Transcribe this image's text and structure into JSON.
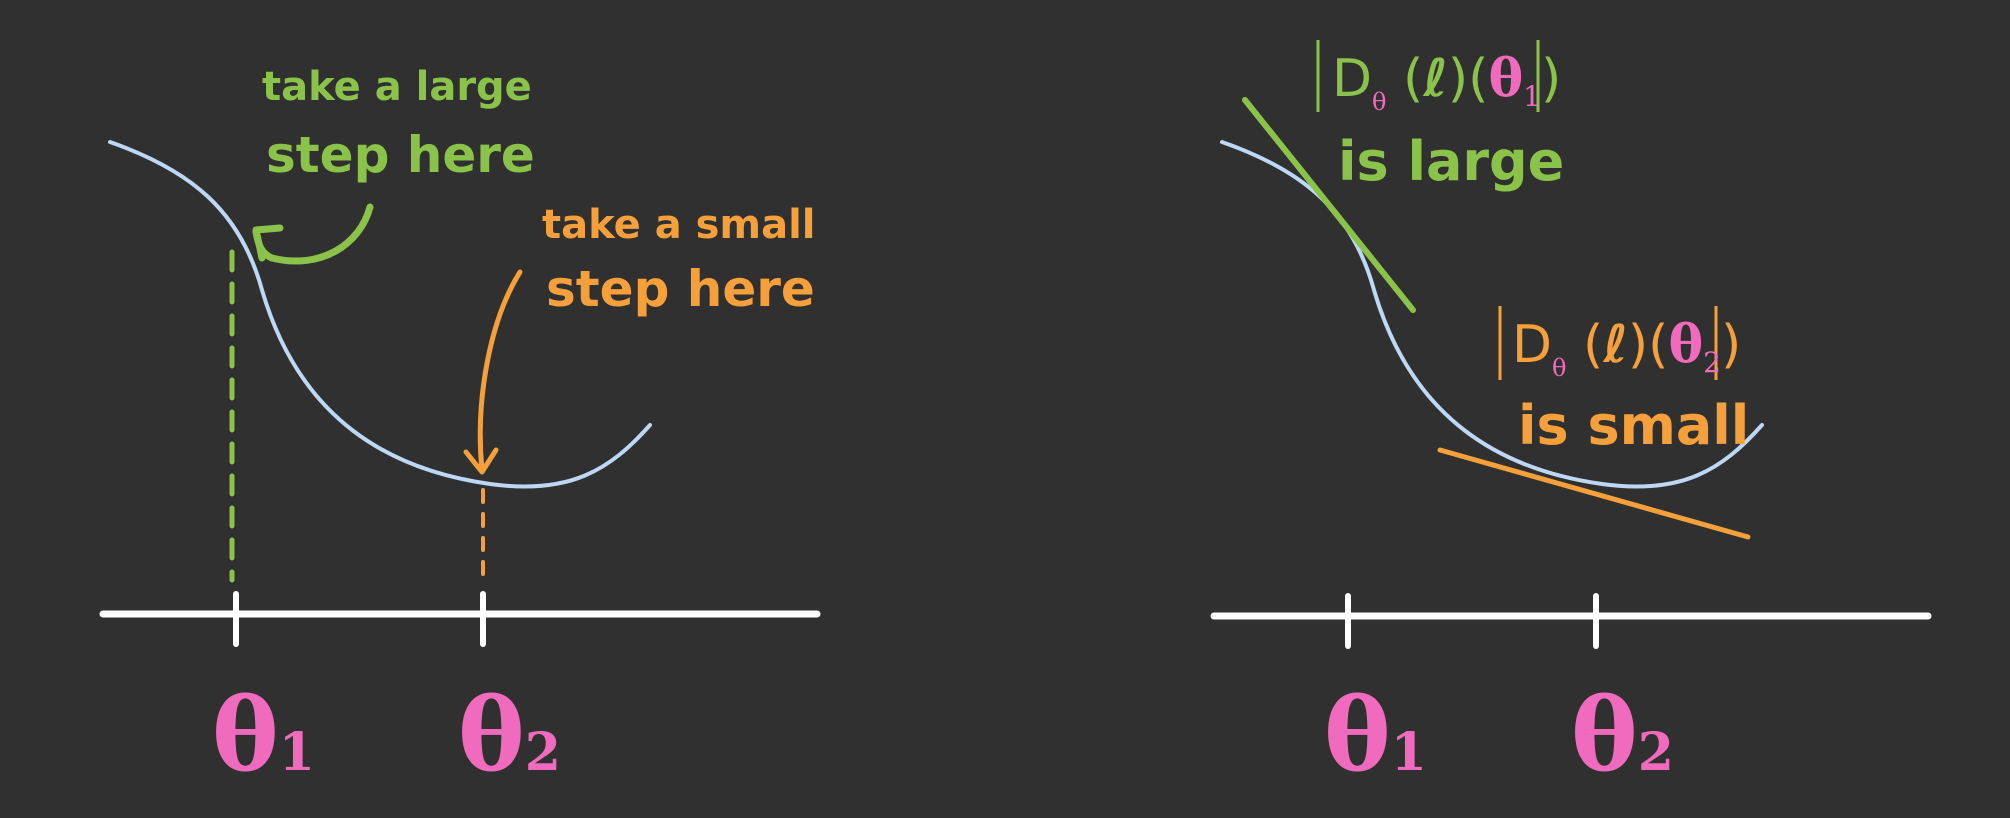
{
  "left_panel": {
    "annotation_large_line1": "take a large",
    "annotation_large_line2": "step here",
    "annotation_small_line1": "take a small",
    "annotation_small_line2": "step here",
    "theta1_symbol": "θ",
    "theta1_subscript": "1",
    "theta2_symbol": "θ",
    "theta2_subscript": "2"
  },
  "right_panel": {
    "large_derivative": {
      "op": "D",
      "op_sub": "θ",
      "arg": "ℓ",
      "point": "θ",
      "point_sub": "1",
      "caption": "is large"
    },
    "small_derivative": {
      "op": "D",
      "op_sub": "θ",
      "arg": "ℓ",
      "point": "θ",
      "point_sub": "2",
      "caption": "is small"
    },
    "theta1_symbol": "θ",
    "theta1_subscript": "1",
    "theta2_symbol": "θ",
    "theta2_subscript": "2"
  },
  "colors": {
    "background": "#303030",
    "curve": "#bcd8f5",
    "green": "#8bc34a",
    "orange": "#f5a03a",
    "pink": "#f06bbd",
    "axis": "#ffffff"
  }
}
